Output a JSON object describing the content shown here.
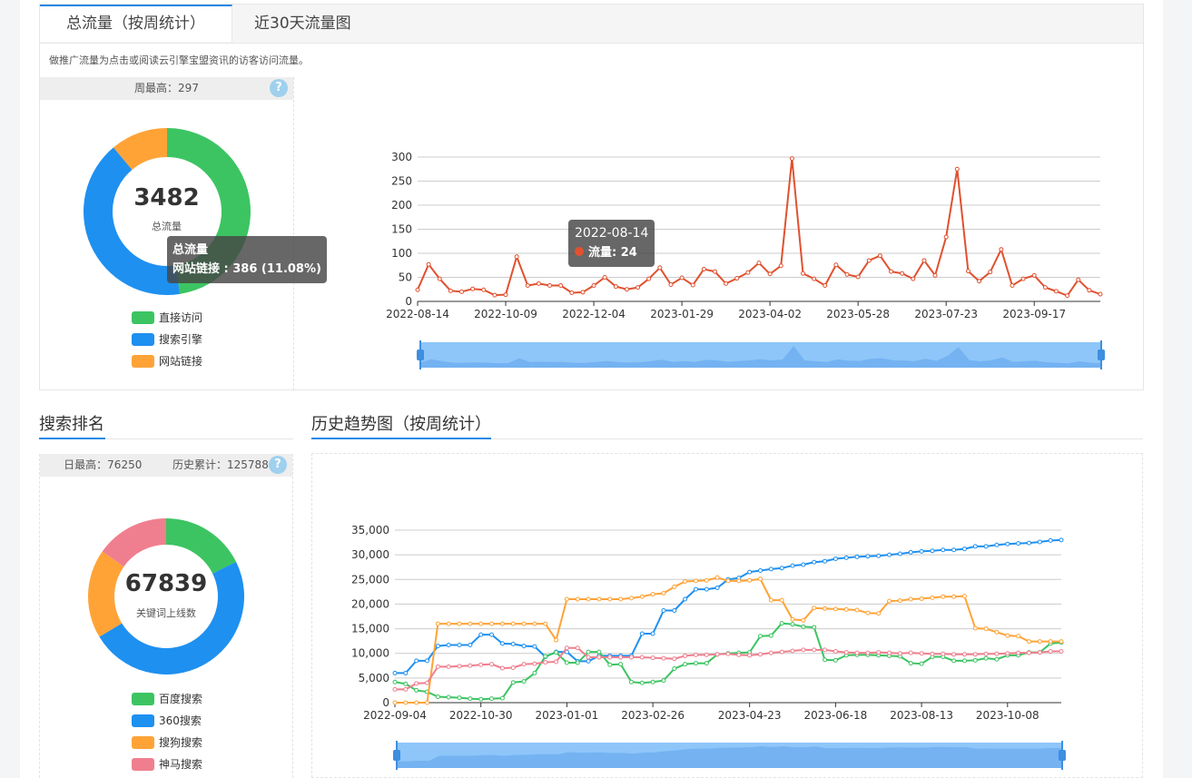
{
  "traffic": {
    "tabs": [
      "总流量（按周统计）",
      "近30天流量图"
    ],
    "description": "做推广流量为点击或阅读云引擎宝盟资讯的访客访问流量。",
    "weekly_max": "周最高：297",
    "help_icon": "?",
    "donut": {
      "total": "3482",
      "label": "总流量",
      "legend": [
        "直接访问",
        "搜索引擎",
        "网站链接"
      ],
      "colors": [
        "#3cc462",
        "#1e90f0",
        "#ffa337"
      ],
      "values": [
        1655,
        1441,
        386
      ],
      "tooltip_title": "总流量",
      "tooltip_text": "网站链接 : 386 (11.08%)"
    },
    "line_tooltip": {
      "date": "2022-08-14",
      "text": "流量: 24"
    }
  },
  "search": {
    "title": "搜索排名",
    "day_max": "日最高：76250",
    "history_total": "历史累计：125788",
    "help_icon": "?",
    "donut": {
      "total": "67839",
      "label": "关键词上线数",
      "legend": [
        "百度搜索",
        "360搜索",
        "搜狗搜索",
        "神马搜索"
      ],
      "colors": [
        "#3cc462",
        "#1e90f0",
        "#ffa337",
        "#ef7f8e"
      ],
      "values": [
        12000,
        33000,
        12500,
        10339
      ]
    }
  },
  "history": {
    "title": "历史趋势图（按周统计）"
  },
  "chart_data": [
    {
      "type": "line",
      "name": "weekly-traffic",
      "x_ticks": [
        "2022-08-14",
        "2022-10-09",
        "2022-12-04",
        "2023-01-29",
        "2023-04-02",
        "2023-05-28",
        "2023-07-23",
        "2023-09-17"
      ],
      "y_ticks": [
        0,
        50,
        100,
        150,
        200,
        250,
        300
      ],
      "ylim": [
        0,
        300
      ],
      "color": "#e0512f",
      "values": [
        24,
        77,
        47,
        22,
        20,
        26,
        24,
        13,
        14,
        93,
        33,
        37,
        33,
        33,
        18,
        19,
        33,
        50,
        31,
        25,
        29,
        47,
        70,
        35,
        49,
        34,
        67,
        62,
        37,
        48,
        60,
        80,
        57,
        74,
        297,
        58,
        47,
        33,
        76,
        56,
        51,
        85,
        95,
        62,
        58,
        47,
        85,
        54,
        134,
        275,
        63,
        42,
        61,
        108,
        33,
        47,
        54,
        29,
        21,
        12,
        45,
        23,
        15
      ],
      "grid": true
    },
    {
      "type": "line",
      "name": "history-trend",
      "x_ticks": [
        "2022-09-04",
        "2022-10-30",
        "2023-01-01",
        "2023-02-26",
        "2023-04-23",
        "2023-06-18",
        "2023-08-13",
        "2023-10-08"
      ],
      "y_ticks": [
        "0",
        "5,000",
        "10,000",
        "15,000",
        "20,000",
        "25,000",
        "30,000",
        "35,000"
      ],
      "ylim": [
        0,
        35000
      ],
      "grid": true,
      "series": [
        {
          "color": "#1e90f0",
          "values": [
            6000,
            6000,
            8500,
            8500,
            11500,
            11700,
            11700,
            11700,
            13800,
            13800,
            12000,
            11900,
            11500,
            11400,
            9300,
            10300,
            10300,
            8400,
            8400,
            9500,
            9500,
            9500,
            9500,
            14000,
            14000,
            18700,
            18700,
            21000,
            23000,
            23000,
            23300,
            25000,
            25300,
            26500,
            26800,
            27100,
            27300,
            27800,
            28000,
            28500,
            28700,
            29200,
            29400,
            29600,
            29700,
            29800,
            30000,
            30200,
            30500,
            30700,
            30800,
            31000,
            31000,
            31200,
            31700,
            31700,
            32000,
            32200,
            32300,
            32400,
            32600,
            32900,
            33000
          ]
        },
        {
          "color": "#3cc462",
          "values": [
            4200,
            3800,
            2500,
            2200,
            1200,
            1100,
            1000,
            800,
            700,
            800,
            900,
            4100,
            4300,
            6000,
            9400,
            10200,
            8100,
            8100,
            10300,
            10300,
            7700,
            7800,
            4200,
            4000,
            4200,
            4500,
            6900,
            7800,
            8000,
            8000,
            9800,
            10000,
            10100,
            10200,
            13500,
            13600,
            16100,
            15900,
            15400,
            15300,
            8700,
            8600,
            9600,
            9700,
            9700,
            9600,
            9500,
            9400,
            8000,
            7900,
            9300,
            9300,
            8500,
            8500,
            8600,
            9000,
            8800,
            9600,
            9600,
            10200,
            10200,
            12000,
            12200
          ]
        },
        {
          "color": "#ffa337",
          "values": [
            0,
            0,
            0,
            0,
            16000,
            16000,
            16000,
            16000,
            16000,
            16000,
            16000,
            16000,
            16000,
            16000,
            16000,
            12700,
            21000,
            21000,
            21000,
            21000,
            21000,
            21000,
            21200,
            21500,
            22000,
            22200,
            23500,
            24600,
            24700,
            24800,
            25400,
            24700,
            24700,
            24800,
            25100,
            20800,
            20800,
            16900,
            16700,
            19200,
            19100,
            19000,
            18900,
            18800,
            18200,
            18100,
            20600,
            20700,
            21000,
            21100,
            21300,
            21500,
            21500,
            21600,
            15100,
            15000,
            14300,
            13600,
            13500,
            12400,
            12400,
            12400,
            12400
          ]
        },
        {
          "color": "#ef7f8e",
          "values": [
            2700,
            2700,
            3900,
            4000,
            7300,
            7300,
            7400,
            7500,
            7700,
            7800,
            7000,
            7100,
            7800,
            7900,
            8200,
            8300,
            11100,
            11100,
            9200,
            9200,
            9200,
            9200,
            9200,
            9200,
            9100,
            9000,
            8900,
            9500,
            9700,
            9700,
            9800,
            9900,
            9700,
            9600,
            9800,
            10100,
            10300,
            10500,
            10700,
            10700,
            10700,
            10400,
            10200,
            10100,
            10100,
            10200,
            10100,
            10000,
            10100,
            10000,
            9900,
            9900,
            9800,
            9800,
            9800,
            9900,
            9900,
            10000,
            10100,
            10100,
            10200,
            10400,
            10400
          ]
        }
      ]
    }
  ]
}
